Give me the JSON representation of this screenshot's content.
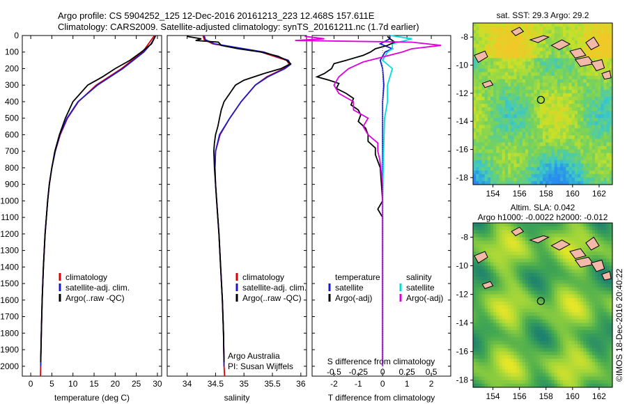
{
  "title_line1": "Argo profile: CS 5904252_125 12-Dec-2016 20161213_223 12.468S 157.611E",
  "title_line2": "Climatology: CARS2009. Satellite-adjusted climatology: synTS_20161211.nc (1.7d earlier)",
  "vertical_stamp": "©IMOS 18-Dec-2016 20:40:22",
  "colors": {
    "climatology": "#dd0000",
    "satellite": "#1a1acc",
    "argo": "#000000",
    "sat_sal": "#00dddd",
    "argo_sal": "#dd00dd"
  },
  "chart_data": [
    {
      "type": "line",
      "name": "temperature",
      "xlabel": "temperature (deg C)",
      "xticks": [
        "0",
        "5",
        "10",
        "15",
        "20",
        "25",
        "30"
      ],
      "xlim": [
        -2,
        31
      ],
      "ylim": [
        0,
        2060
      ],
      "yticks": [
        "0",
        "100",
        "200",
        "300",
        "400",
        "500",
        "600",
        "700",
        "800",
        "900",
        "1000",
        "1100",
        "1200",
        "1300",
        "1400",
        "1500",
        "1600",
        "1700",
        "1800",
        "1900",
        "2000"
      ],
      "legend": [
        "climatology",
        "satellite-adj. clim.",
        "Argo(..raw -QC)"
      ],
      "series": [
        {
          "name": "climatology",
          "depth": [
            0,
            100,
            200,
            300,
            400,
            500,
            600,
            700,
            800,
            900,
            1000,
            1200,
            1400,
            1600,
            1800,
            2000,
            2060
          ],
          "values": [
            29.3,
            26.5,
            21.5,
            15.5,
            11.3,
            8.7,
            7.0,
            5.8,
            5.0,
            4.4,
            4.0,
            3.4,
            3.0,
            2.7,
            2.5,
            2.35,
            2.3
          ]
        },
        {
          "name": "satellite-adj. clim.",
          "depth": [
            0,
            50,
            100,
            200,
            300,
            400,
            500,
            600,
            700,
            800,
            900,
            1000,
            1200,
            1400,
            1600,
            1800,
            2000
          ],
          "values": [
            29.6,
            28.5,
            26.8,
            21.8,
            15.8,
            11.2,
            8.6,
            6.9,
            5.8,
            5.0,
            4.4,
            4.0,
            3.4,
            3.0,
            2.7,
            2.5,
            2.35
          ]
        },
        {
          "name": "Argo(..raw -QC)",
          "depth": [
            5,
            50,
            100,
            150,
            200,
            250,
            300,
            400,
            500,
            600,
            700,
            800,
            900,
            1000,
            1200,
            1400,
            1600,
            1800,
            1975
          ],
          "values": [
            29.5,
            28.6,
            26.2,
            23.5,
            20.0,
            17.0,
            13.5,
            10.0,
            8.2,
            6.8,
            5.7,
            5.0,
            4.4,
            4.0,
            3.4,
            3.0,
            2.7,
            2.5,
            2.35
          ]
        }
      ]
    },
    {
      "type": "line",
      "name": "salinity",
      "xlabel": "salinity",
      "xticks": [
        "34",
        "34.5",
        "35",
        "35.5",
        "36"
      ],
      "xlim": [
        33.65,
        36.1
      ],
      "ylim": [
        0,
        2060
      ],
      "legend": [
        "climatology",
        "satellite-adj. clim.",
        "Argo(..raw -QC)"
      ],
      "annotation": [
        "Argo Australia",
        "PI: Susan Wijffels"
      ],
      "series": [
        {
          "name": "climatology",
          "depth": [
            0,
            25,
            50,
            100,
            150,
            175,
            200,
            250,
            300,
            400,
            500,
            600,
            700,
            800,
            900,
            1000,
            1200,
            1400,
            1600,
            1800,
            2000,
            2060
          ],
          "values": [
            34.28,
            34.3,
            34.45,
            35.3,
            35.75,
            35.8,
            35.7,
            35.4,
            35.2,
            34.95,
            34.75,
            34.58,
            34.5,
            34.49,
            34.5,
            34.52,
            34.56,
            34.59,
            34.62,
            34.64,
            34.65,
            34.66
          ]
        },
        {
          "name": "satellite-adj. clim.",
          "depth": [
            0,
            25,
            50,
            100,
            150,
            175,
            200,
            250,
            300,
            400,
            500,
            600,
            700,
            800,
            900,
            1000,
            1200,
            1400,
            1600,
            1800,
            2000
          ],
          "values": [
            34.3,
            34.32,
            34.48,
            35.35,
            35.78,
            35.82,
            35.72,
            35.42,
            35.2,
            34.95,
            34.75,
            34.57,
            34.5,
            34.49,
            34.5,
            34.52,
            34.56,
            34.59,
            34.62,
            34.64,
            34.65
          ]
        },
        {
          "name": "Argo(..raw -QC)",
          "depth": [
            5,
            20,
            30,
            40,
            60,
            80,
            100,
            125,
            150,
            170,
            200,
            230,
            270,
            300,
            350,
            400,
            450,
            500,
            550,
            600,
            650,
            700,
            800,
            900,
            1000,
            1200,
            1400,
            1600,
            1800,
            1975
          ],
          "values": [
            34.0,
            34.25,
            34.15,
            34.55,
            34.6,
            34.9,
            35.3,
            35.6,
            35.75,
            35.82,
            35.65,
            35.35,
            35.0,
            34.85,
            34.75,
            34.65,
            34.6,
            34.57,
            34.54,
            34.5,
            34.48,
            34.47,
            34.48,
            34.5,
            34.52,
            34.56,
            34.59,
            34.62,
            34.64,
            34.65
          ]
        }
      ]
    },
    {
      "type": "line",
      "name": "difference",
      "xlabel": "T difference from climatology",
      "xlabel_top": "S difference from climatology",
      "xticks": [
        "-2",
        "-1",
        "0",
        "1",
        "2"
      ],
      "xticks_s": [
        "-0.5",
        "-0.25",
        "0",
        "0.25",
        "0.5"
      ],
      "xlim": [
        -2.9,
        2.8
      ],
      "ylim": [
        0,
        2060
      ],
      "legend_left": [
        "temperature",
        "satellite",
        "Argo(-adj)"
      ],
      "legend_right": [
        "salinity",
        "satellite",
        "Argo(-adj)"
      ],
      "series": [
        {
          "name": "T satellite",
          "depth": [
            0,
            20,
            50,
            80,
            100,
            150,
            200,
            300,
            400,
            500,
            700,
            1000,
            1500,
            2000
          ],
          "values": [
            0.3,
            0.3,
            -0.1,
            0.4,
            0.1,
            -0.1,
            0.0,
            0.05,
            0.0,
            0.0,
            0.0,
            0.0,
            0.0,
            0.0
          ]
        },
        {
          "name": "S satellite",
          "depth": [
            0,
            20,
            50,
            80,
            100,
            150,
            200,
            300,
            400,
            500,
            700,
            1000,
            1500,
            2000
          ],
          "values": [
            0.08,
            0.3,
            0.1,
            0.1,
            0.05,
            0.0,
            0.1,
            0.05,
            0.05,
            0.02,
            0.01,
            0.0,
            0.0,
            0.0
          ]
        },
        {
          "name": "T Argo(-adj)",
          "depth": [
            5,
            20,
            40,
            60,
            80,
            100,
            120,
            150,
            170,
            200,
            230,
            250,
            270,
            290,
            320,
            350,
            380,
            420,
            450,
            480,
            520,
            560,
            600,
            640,
            680,
            720,
            760,
            800,
            900,
            1000,
            1050,
            1100,
            1200,
            1400,
            1600,
            1800,
            1975
          ],
          "values": [
            0.2,
            0.3,
            0.5,
            0.2,
            -0.3,
            -0.5,
            -0.8,
            -1.5,
            -2.0,
            -2.1,
            -2.4,
            -2.7,
            -2.2,
            -1.8,
            -1.9,
            -1.5,
            -1.2,
            -1.3,
            -1.0,
            -0.9,
            -1.0,
            -0.7,
            -0.6,
            -0.6,
            -0.3,
            -0.3,
            -0.2,
            -0.1,
            -0.05,
            0.0,
            -0.2,
            0.0,
            0.0,
            0.0,
            0.0,
            0.0,
            0.0
          ]
        },
        {
          "name": "S Argo(-adj)",
          "depth": [
            5,
            20,
            30,
            40,
            60,
            80,
            100,
            130,
            160,
            200,
            250,
            300,
            350,
            400,
            450,
            500,
            550,
            600,
            650,
            700,
            750,
            800,
            900,
            1000,
            1200,
            1500,
            2000
          ],
          "values": [
            -0.8,
            -0.6,
            -0.9,
            0.3,
            0.6,
            0.3,
            0.2,
            0.0,
            -0.2,
            -0.35,
            -0.45,
            -0.5,
            -0.45,
            -0.3,
            -0.3,
            -0.15,
            -0.2,
            -0.15,
            -0.05,
            -0.05,
            -0.03,
            -0.02,
            0.0,
            0.0,
            0.0,
            0.0,
            0.0
          ]
        }
      ]
    },
    {
      "type": "heatmap",
      "name": "sst map",
      "title": "sat. SST: 29.3  Argo: 29.2",
      "xticks": [
        "154",
        "156",
        "158",
        "160",
        "162"
      ],
      "yticks": [
        "-8",
        "-10",
        "-12",
        "-14",
        "-16",
        "-18"
      ],
      "xlim": [
        152.5,
        163.0
      ],
      "ylim": [
        -18.5,
        -7.0
      ],
      "argo_position": {
        "lon": 157.611,
        "lat": -12.468
      }
    },
    {
      "type": "heatmap",
      "name": "sla map",
      "title_line1": "Altim. SLA: 0.042",
      "title_line2": "Argo h1000: -0.0022 h2000: -0.012",
      "xticks": [
        "154",
        "156",
        "158",
        "160",
        "162"
      ],
      "yticks": [
        "-8",
        "-10",
        "-12",
        "-14",
        "-16",
        "-18"
      ],
      "xlim": [
        152.5,
        163.0
      ],
      "ylim": [
        -18.5,
        -7.0
      ],
      "argo_position": {
        "lon": 157.611,
        "lat": -12.468
      }
    }
  ]
}
